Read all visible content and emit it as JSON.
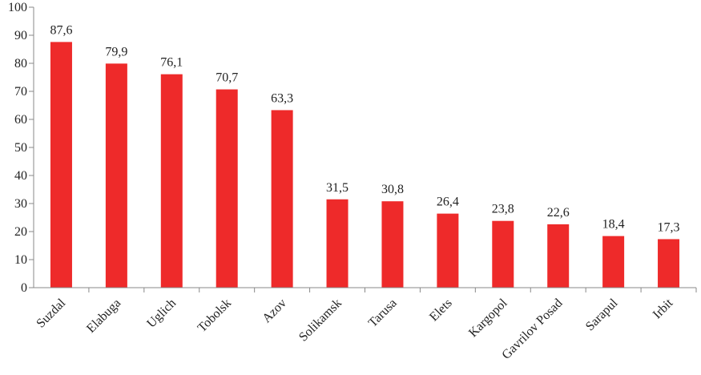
{
  "chart_data": {
    "type": "bar",
    "title": "",
    "xlabel": "",
    "ylabel": "",
    "ylim": [
      0,
      100
    ],
    "yticks": [
      0,
      10,
      20,
      30,
      40,
      50,
      60,
      70,
      80,
      90,
      100
    ],
    "grid": false,
    "legend": "none",
    "bar_color": "#ee2a2a",
    "categories": [
      "Suzdal",
      "Elabuga",
      "Uglich",
      "Tobolsk",
      "Azov",
      "Solikamsk",
      "Tarusa",
      "Elets",
      "Kargopol",
      "Gavrilov Posad",
      "Sarapul",
      "Irbit"
    ],
    "values": [
      87.6,
      79.9,
      76.1,
      70.7,
      63.3,
      31.5,
      30.8,
      26.4,
      23.8,
      22.6,
      18.4,
      17.3
    ],
    "data_labels": [
      "87,6",
      "79,9",
      "76,1",
      "70,7",
      "63,3",
      "31,5",
      "30,8",
      "26,4",
      "23,8",
      "22,6",
      "18,4",
      "17,3"
    ]
  }
}
